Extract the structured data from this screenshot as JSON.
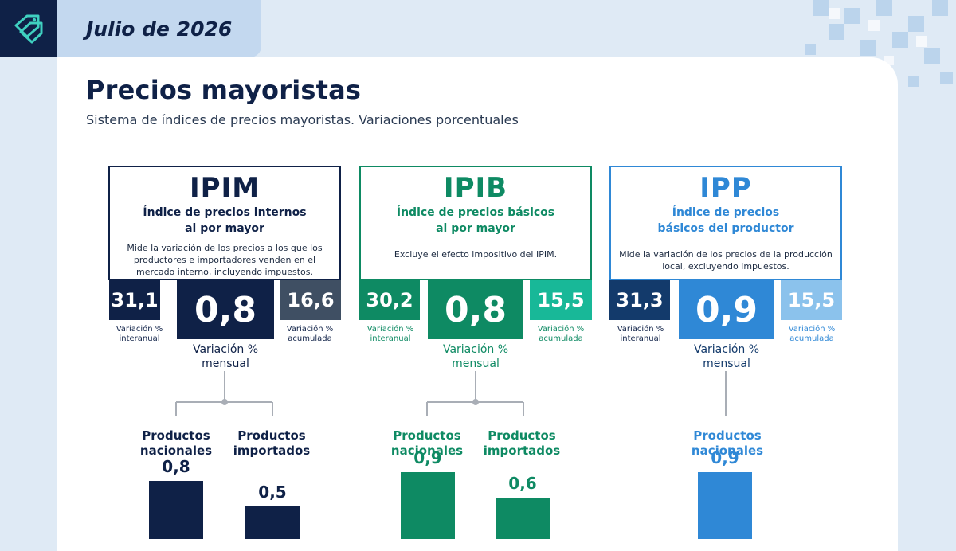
{
  "header": {
    "date_label": "Julio de 2026",
    "logo_icon": "price-tags-icon"
  },
  "page": {
    "title": "Precios mayoristas",
    "subtitle": "Sistema de índices de precios mayoristas. Variaciones porcentuales"
  },
  "colors": {
    "navy": "#0f2147",
    "navy_light": "#3f4f63",
    "green": "#0e8a63",
    "green_light": "#18b898",
    "blue": "#2f88d6",
    "blue_dark": "#133a6b",
    "blue_light": "#8bc2ec",
    "background": "#dfeaf5"
  },
  "indices": [
    {
      "code": "IPIM",
      "name_line1": "Índice de precios internos",
      "name_line2": "al por mayor",
      "description": "Mide la variación de los precios a los que los productores e importadores venden en el mercado interno, incluyendo impuestos.",
      "interanual": "31,1",
      "mensual": "0,8",
      "acumulada": "16,6",
      "interanual_label_1": "Variación %",
      "interanual_label_2": "interanual",
      "mensual_label_1": "Variación %",
      "mensual_label_2": "mensual",
      "acumulada_label_1": "Variación %",
      "acumulada_label_2": "acumulada"
    },
    {
      "code": "IPIB",
      "name_line1": "Índice de precios básicos",
      "name_line2": "al por mayor",
      "description": "Excluye el efecto impositivo del IPIM.",
      "interanual": "30,2",
      "mensual": "0,8",
      "acumulada": "15,5",
      "interanual_label_1": "Variación %",
      "interanual_label_2": "interanual",
      "mensual_label_1": "Variación %",
      "mensual_label_2": "mensual",
      "acumulada_label_1": "Variación %",
      "acumulada_label_2": "acumulada"
    },
    {
      "code": "IPP",
      "name_line1": "Índice de precios",
      "name_line2": "básicos del productor",
      "description": "Mide la variación de los precios de la producción local, excluyendo impuestos.",
      "interanual": "31,3",
      "mensual": "0,9",
      "acumulada": "15,5",
      "interanual_label_1": "Variación %",
      "interanual_label_2": "interanual",
      "mensual_label_1": "Variación %",
      "mensual_label_2": "mensual",
      "acumulada_label_1": "Variación %",
      "acumulada_label_2": "acumulada"
    }
  ],
  "products": {
    "nacionales_1": "Productos",
    "nacionales_2": "nacionales",
    "importados_1": "Productos",
    "importados_2": "importados"
  },
  "chart_data": {
    "type": "bar",
    "ylabel": "",
    "groups": [
      {
        "index": "IPIM",
        "bars": [
          {
            "category": "Productos nacionales",
            "value": 0.8,
            "label": "0,8"
          },
          {
            "category": "Productos importados",
            "value": 0.5,
            "label": "0,5"
          }
        ]
      },
      {
        "index": "IPIB",
        "bars": [
          {
            "category": "Productos nacionales",
            "value": 0.9,
            "label": "0,9"
          },
          {
            "category": "Productos importados",
            "value": 0.6,
            "label": "0,6"
          }
        ]
      },
      {
        "index": "IPP",
        "bars": [
          {
            "category": "Productos nacionales",
            "value": 0.9,
            "label": "0,9"
          }
        ]
      }
    ]
  }
}
